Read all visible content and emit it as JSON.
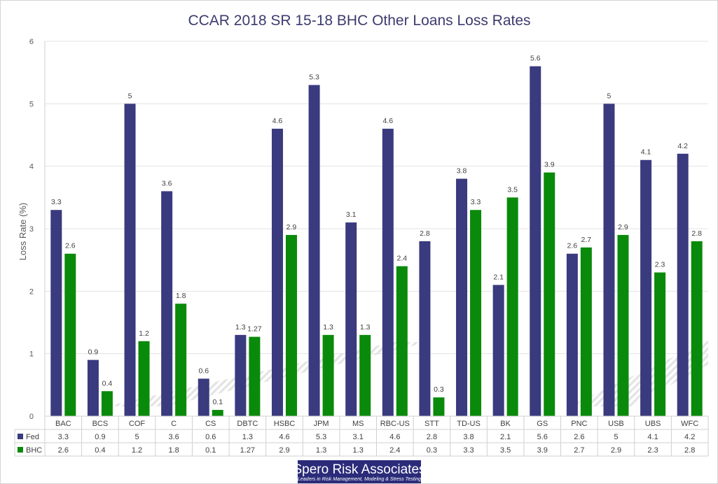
{
  "chart_data": {
    "type": "bar",
    "title": "CCAR 2018 SR 15-18 BHC Other Loans Loss Rates",
    "ylabel": "Loss Rate (%)",
    "xlabel": "",
    "ylim": [
      0,
      6
    ],
    "yticks": [
      0,
      1,
      2,
      3,
      4,
      5,
      6
    ],
    "grid": true,
    "legend": "data-table-left",
    "categories": [
      "BAC",
      "BCS",
      "COF",
      "C",
      "CS",
      "DBTC",
      "HSBC",
      "JPM",
      "MS",
      "RBC-US",
      "STT",
      "TD-US",
      "BK",
      "GS",
      "PNC",
      "USB",
      "UBS",
      "WFC"
    ],
    "series": [
      {
        "name": "Fed",
        "color": "#3a3a7f",
        "values": [
          3.3,
          0.9,
          5,
          3.6,
          0.6,
          1.3,
          4.6,
          5.3,
          3.1,
          4.6,
          2.8,
          3.8,
          2.1,
          5.6,
          2.6,
          5,
          4.1,
          4.2
        ],
        "labels": [
          "3.3",
          "0.9",
          "5",
          "3.6",
          "0.6",
          "1.3",
          "4.6",
          "5.3",
          "3.1",
          "4.6",
          "2.8",
          "3.8",
          "2.1",
          "5.6",
          "2.6",
          "5",
          "4.1",
          "4.2"
        ]
      },
      {
        "name": "BHC",
        "color": "#0a8a0a",
        "values": [
          2.6,
          0.4,
          1.2,
          1.8,
          0.1,
          1.27,
          2.9,
          1.3,
          1.3,
          2.4,
          0.3,
          3.3,
          3.5,
          3.9,
          2.7,
          2.9,
          2.3,
          2.8
        ],
        "labels": [
          "2.6",
          "0.4",
          "1.2",
          "1.8",
          "0.1",
          "1.27",
          "2.9",
          "1.3",
          "1.3",
          "2.4",
          "0.3",
          "3.3",
          "3.5",
          "3.9",
          "2.7",
          "2.9",
          "2.3",
          "2.8"
        ]
      }
    ]
  },
  "branding": {
    "name": "Spero Risk Associates",
    "tagline": "Leaders in Risk Management, Modeling & Stress Testing",
    "color": "#2b2b7a"
  }
}
